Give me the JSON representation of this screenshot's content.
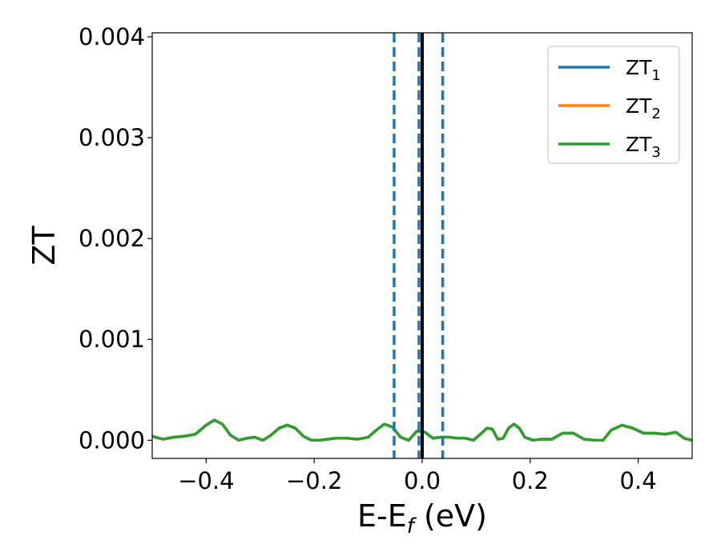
{
  "chart_data": {
    "type": "line",
    "xlabel_main": "E-E",
    "xlabel_sub": "f",
    "xlabel_unit": " (eV)",
    "ylabel": "ZT",
    "xlim": [
      -0.5,
      0.5
    ],
    "ylim": [
      -0.00018,
      0.00404
    ],
    "x_ticks": [
      -0.4,
      -0.2,
      0.0,
      0.2,
      0.4
    ],
    "x_tick_labels": [
      "−0.4",
      "−0.2",
      "0.0",
      "0.2",
      "0.4"
    ],
    "y_ticks": [
      0.0,
      0.001,
      0.002,
      0.003,
      0.004
    ],
    "y_tick_labels": [
      "0.000",
      "0.001",
      "0.002",
      "0.003",
      "0.004"
    ],
    "grid": false,
    "legend_position": "top-right",
    "colors": {
      "zt1": "#1f77b4",
      "zt2": "#ff7f0e",
      "zt3": "#2ca02c",
      "fermi_line": "#000000",
      "dashed_lines": "#1f77b4"
    },
    "vertical_lines": [
      {
        "x": 0.0,
        "style": "solid",
        "color": "#000000"
      },
      {
        "x": -0.052,
        "style": "dashed",
        "color": "#1f77b4"
      },
      {
        "x": -0.006,
        "style": "dashed",
        "color": "#1f77b4"
      },
      {
        "x": 0.038,
        "style": "dashed",
        "color": "#1f77b4"
      }
    ],
    "x": [
      -0.5,
      -0.48,
      -0.46,
      -0.44,
      -0.42,
      -0.4,
      -0.385,
      -0.37,
      -0.355,
      -0.34,
      -0.325,
      -0.31,
      -0.295,
      -0.28,
      -0.265,
      -0.25,
      -0.235,
      -0.22,
      -0.205,
      -0.19,
      -0.175,
      -0.16,
      -0.14,
      -0.12,
      -0.1,
      -0.085,
      -0.07,
      -0.055,
      -0.04,
      -0.025,
      -0.01,
      0.005,
      0.02,
      0.035,
      0.05,
      0.065,
      0.08,
      0.095,
      0.11,
      0.12,
      0.13,
      0.14,
      0.15,
      0.16,
      0.17,
      0.18,
      0.19,
      0.205,
      0.22,
      0.24,
      0.26,
      0.28,
      0.3,
      0.32,
      0.335,
      0.35,
      0.37,
      0.39,
      0.41,
      0.43,
      0.45,
      0.47,
      0.485,
      0.5
    ],
    "series": [
      {
        "name_main": "ZT",
        "name_sub": "1",
        "color": "#1f77b4",
        "values": [
          4e-05,
          1e-05,
          3e-05,
          4e-05,
          6e-05,
          0.00015,
          0.0002,
          0.00016,
          5e-05,
          0.0,
          2e-05,
          3e-05,
          0.0,
          5e-05,
          0.00012,
          0.00015,
          0.00012,
          4e-05,
          0.0,
          0.0,
          1e-05,
          2e-05,
          2e-05,
          1e-05,
          3e-05,
          0.0001,
          0.00016,
          0.00013,
          3e-05,
          0.0,
          9e-05,
          8e-05,
          2e-05,
          3e-05,
          3e-05,
          2e-05,
          2e-05,
          0.0,
          7e-05,
          0.00012,
          0.00011,
          1e-05,
          2e-05,
          0.00012,
          0.00016,
          0.00012,
          3e-05,
          0.0,
          1e-05,
          1e-05,
          7e-05,
          7e-05,
          1e-05,
          0.0,
          0.0,
          0.0001,
          0.00015,
          0.00012,
          7e-05,
          7e-05,
          6e-05,
          8e-05,
          2e-05,
          0.0
        ]
      },
      {
        "name_main": "ZT",
        "name_sub": "2",
        "color": "#ff7f0e",
        "values": [
          4e-05,
          1e-05,
          3e-05,
          4e-05,
          6e-05,
          0.00015,
          0.0002,
          0.00016,
          5e-05,
          0.0,
          2e-05,
          3e-05,
          0.0,
          5e-05,
          0.00012,
          0.00015,
          0.00012,
          4e-05,
          0.0,
          0.0,
          1e-05,
          2e-05,
          2e-05,
          1e-05,
          3e-05,
          0.0001,
          0.00016,
          0.00013,
          3e-05,
          0.0,
          9e-05,
          8e-05,
          2e-05,
          3e-05,
          3e-05,
          2e-05,
          2e-05,
          0.0,
          7e-05,
          0.00012,
          0.00011,
          1e-05,
          2e-05,
          0.00012,
          0.00016,
          0.00012,
          3e-05,
          0.0,
          1e-05,
          1e-05,
          7e-05,
          7e-05,
          1e-05,
          0.0,
          0.0,
          0.0001,
          0.00015,
          0.00012,
          7e-05,
          7e-05,
          6e-05,
          8e-05,
          2e-05,
          0.0
        ]
      },
      {
        "name_main": "ZT",
        "name_sub": "3",
        "color": "#2ca02c",
        "values": [
          4e-05,
          1e-05,
          3e-05,
          4e-05,
          6e-05,
          0.00015,
          0.0002,
          0.00016,
          5e-05,
          0.0,
          2e-05,
          3e-05,
          0.0,
          5e-05,
          0.00012,
          0.00015,
          0.00012,
          4e-05,
          0.0,
          0.0,
          1e-05,
          2e-05,
          2e-05,
          1e-05,
          3e-05,
          0.0001,
          0.00016,
          0.00013,
          3e-05,
          0.0,
          9e-05,
          8e-05,
          2e-05,
          3e-05,
          3e-05,
          2e-05,
          2e-05,
          0.0,
          7e-05,
          0.00012,
          0.00011,
          1e-05,
          2e-05,
          0.00012,
          0.00016,
          0.00012,
          3e-05,
          0.0,
          1e-05,
          1e-05,
          7e-05,
          7e-05,
          1e-05,
          0.0,
          0.0,
          0.0001,
          0.00015,
          0.00012,
          7e-05,
          7e-05,
          6e-05,
          8e-05,
          2e-05,
          0.0
        ]
      }
    ]
  }
}
